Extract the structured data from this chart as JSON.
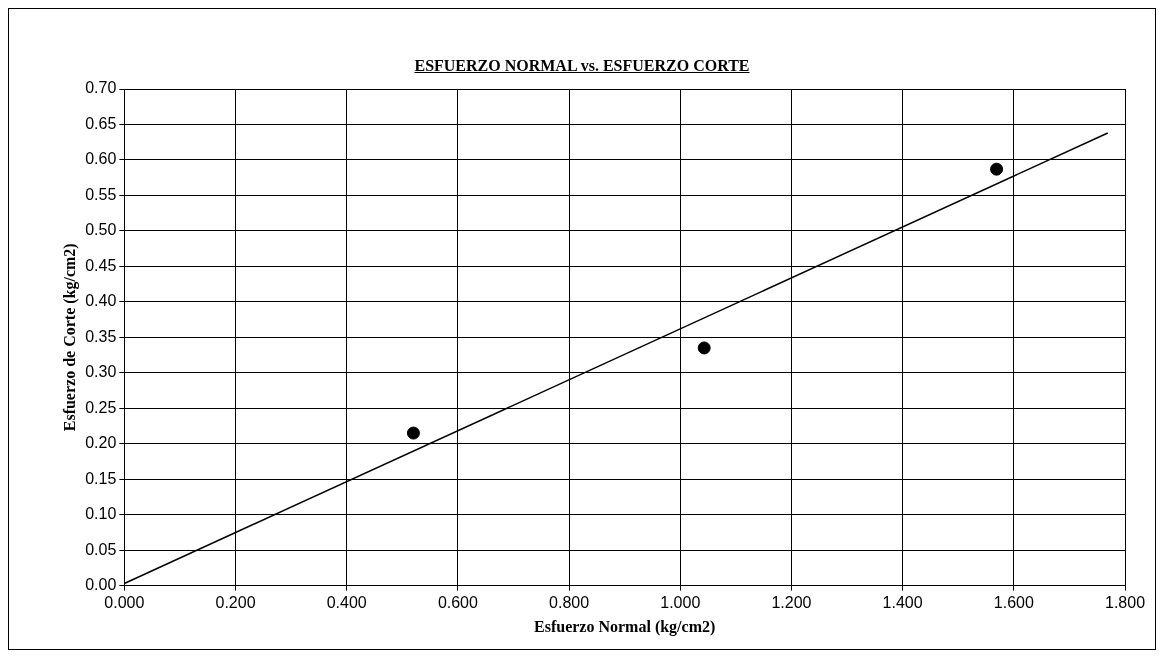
{
  "chart_data": {
    "type": "scatter",
    "title": "ESFUERZO NORMAL vs. ESFUERZO CORTE",
    "xlabel": "Esfuerzo Normal (kg/cm2)",
    "ylabel": "Esfuerzo de Corte (kg/cm2)",
    "x": [
      0.52,
      1.043,
      1.569
    ],
    "series": [
      {
        "type": "scatter",
        "color": "#000000",
        "marker": "circle",
        "values": [
          0.215,
          0.335,
          0.587
        ]
      },
      {
        "type": "line",
        "color": "#000000",
        "marker": "none",
        "x": [
          0.0,
          1.769
        ],
        "values": [
          0.003,
          0.638
        ]
      }
    ],
    "xlim": [
      0,
      1.8
    ],
    "xticks": [
      {
        "value": 0,
        "label": "0.000"
      },
      {
        "value": 0.2,
        "label": "0.200"
      },
      {
        "value": 0.4,
        "label": "0.400"
      },
      {
        "value": 0.6,
        "label": "0.600"
      },
      {
        "value": 0.8,
        "label": "0.800"
      },
      {
        "value": 1.0,
        "label": "1.000"
      },
      {
        "value": 1.2,
        "label": "1.200"
      },
      {
        "value": 1.4,
        "label": "1.400"
      },
      {
        "value": 1.6,
        "label": "1.600"
      },
      {
        "value": 1.8,
        "label": "1.800"
      }
    ],
    "ylim": [
      0,
      0.7
    ],
    "yticks": [
      {
        "value": 0,
        "label": "0.00"
      },
      {
        "value": 0.05,
        "label": "0.05"
      },
      {
        "value": 0.1,
        "label": "0.10"
      },
      {
        "value": 0.15,
        "label": "0.15"
      },
      {
        "value": 0.2,
        "label": "0.20"
      },
      {
        "value": 0.25,
        "label": "0.25"
      },
      {
        "value": 0.3,
        "label": "0.30"
      },
      {
        "value": 0.35,
        "label": "0.35"
      },
      {
        "value": 0.4,
        "label": "0.40"
      },
      {
        "value": 0.45,
        "label": "0.45"
      },
      {
        "value": 0.5,
        "label": "0.50"
      },
      {
        "value": 0.55,
        "label": "0.55"
      },
      {
        "value": 0.6,
        "label": "0.60"
      },
      {
        "value": 0.65,
        "label": "0.65"
      },
      {
        "value": 0.7,
        "label": "0.70"
      }
    ],
    "grid": true,
    "legend": false
  }
}
